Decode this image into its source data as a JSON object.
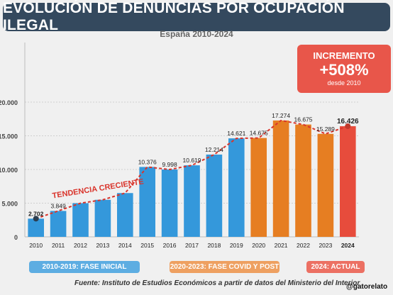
{
  "header": {
    "title": "EVOLUCIÓN DE DENUNCIAS POR OCUPACIÓN ILEGAL",
    "subtitle": "España 2010-2024"
  },
  "increment": {
    "label": "INCREMENTO",
    "value": "+508%",
    "note": "desde 2010"
  },
  "legend": {
    "phase1": "2010-2019: FASE INICIAL",
    "phase2": "2020-2023: FASE COVID Y POST",
    "phase3": "2024: ACTUAL"
  },
  "source": "Fuente: Instituto de Estudios Económicos a partir de datos del Ministerio del Interior",
  "handle": "@gatorelato",
  "chart_data": {
    "type": "bar",
    "title": "EVOLUCIÓN DE DENUNCIAS POR OCUPACIÓN ILEGAL",
    "subtitle": "España 2010-2024",
    "categories": [
      "2010",
      "2011",
      "2012",
      "2013",
      "2014",
      "2015",
      "2016",
      "2017",
      "2018",
      "2019",
      "2020",
      "2021",
      "2022",
      "2023",
      "2024"
    ],
    "values": [
      2702,
      3849,
      5000,
      5500,
      6500,
      10376,
      9998,
      10619,
      12214,
      14621,
      14675,
      17274,
      16675,
      15289,
      16426
    ],
    "value_labels": [
      "2.702",
      "3.849",
      "",
      "",
      "",
      "10.376",
      "9.998",
      "10.619",
      "12.214",
      "14.621",
      "14.675",
      "17.274",
      "16.675",
      "15.289",
      "16.426"
    ],
    "y_tick_labels": [
      "0",
      "5.000",
      "10.000",
      "15.000",
      "20.000"
    ],
    "y_ticks": [
      0,
      5000,
      10000,
      15000,
      20000
    ],
    "ylim": [
      0,
      20000
    ],
    "phases": [
      "FASE INICIAL",
      "FASE INICIAL",
      "FASE INICIAL",
      "FASE INICIAL",
      "FASE INICIAL",
      "FASE INICIAL",
      "FASE INICIAL",
      "FASE INICIAL",
      "FASE INICIAL",
      "FASE INICIAL",
      "FASE COVID Y POST",
      "FASE COVID Y POST",
      "FASE COVID Y POST",
      "FASE COVID Y POST",
      "ACTUAL"
    ],
    "colors": {
      "FASE INICIAL": "#3498db",
      "FASE COVID Y POST": "#e67e22",
      "ACTUAL": "#e74c3c"
    },
    "trend_label": "TENDENCIA CRECIENTE",
    "grid": true
  }
}
